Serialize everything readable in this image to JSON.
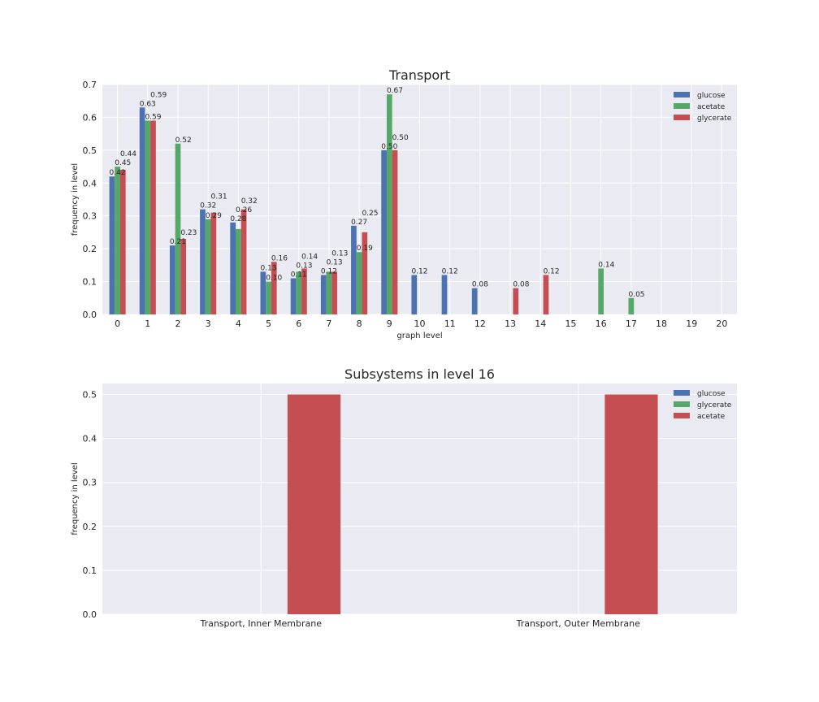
{
  "chart_data": [
    {
      "type": "bar",
      "title": "Transport",
      "xlabel": "graph level",
      "ylabel": "frequency in level",
      "categories": [
        "0",
        "1",
        "2",
        "3",
        "4",
        "5",
        "6",
        "7",
        "8",
        "9",
        "10",
        "11",
        "12",
        "13",
        "14",
        "15",
        "16",
        "17",
        "18",
        "19",
        "20"
      ],
      "ylim": [
        0,
        0.7
      ],
      "yticks": [
        "0.0",
        "0.1",
        "0.2",
        "0.3",
        "0.4",
        "0.5",
        "0.6",
        "0.7"
      ],
      "grid": true,
      "legend": "top-right",
      "series": [
        {
          "name": "glucose",
          "color": "#4C72B0",
          "values": [
            0.42,
            0.63,
            0.21,
            0.32,
            0.28,
            0.13,
            0.11,
            0.12,
            0.27,
            0.5,
            0.12,
            0.12,
            0.08,
            0,
            0,
            0,
            0,
            0,
            0,
            0,
            0
          ]
        },
        {
          "name": "acetate",
          "color": "#55A868",
          "values": [
            0.45,
            0.59,
            0.52,
            0.29,
            0.26,
            0.1,
            0.13,
            0.13,
            0.19,
            0.67,
            0,
            0,
            0,
            0,
            0,
            0,
            0.14,
            0.05,
            0,
            0,
            0
          ]
        },
        {
          "name": "glycerate",
          "color": "#C44E52",
          "values": [
            0.44,
            0.59,
            0.23,
            0.31,
            0.32,
            0.16,
            0.14,
            0.13,
            0.25,
            0.5,
            0,
            0,
            0,
            0.08,
            0.12,
            0,
            0,
            0,
            0,
            0,
            0
          ]
        }
      ]
    },
    {
      "type": "bar",
      "title": "Subsystems in level 16",
      "xlabel": "",
      "ylabel": "frequency in level",
      "categories": [
        "Transport, Inner Membrane",
        "Transport, Outer Membrane"
      ],
      "ylim": [
        0,
        0.525
      ],
      "yticks": [
        "0.0",
        "0.1",
        "0.2",
        "0.3",
        "0.4",
        "0.5"
      ],
      "grid": true,
      "legend": "top-right",
      "series": [
        {
          "name": "glucose",
          "color": "#4C72B0",
          "values": [
            0,
            0
          ]
        },
        {
          "name": "glycerate",
          "color": "#55A868",
          "values": [
            0,
            0
          ]
        },
        {
          "name": "acetate",
          "color": "#C44E52",
          "values": [
            0.5,
            0.5
          ]
        }
      ]
    }
  ]
}
